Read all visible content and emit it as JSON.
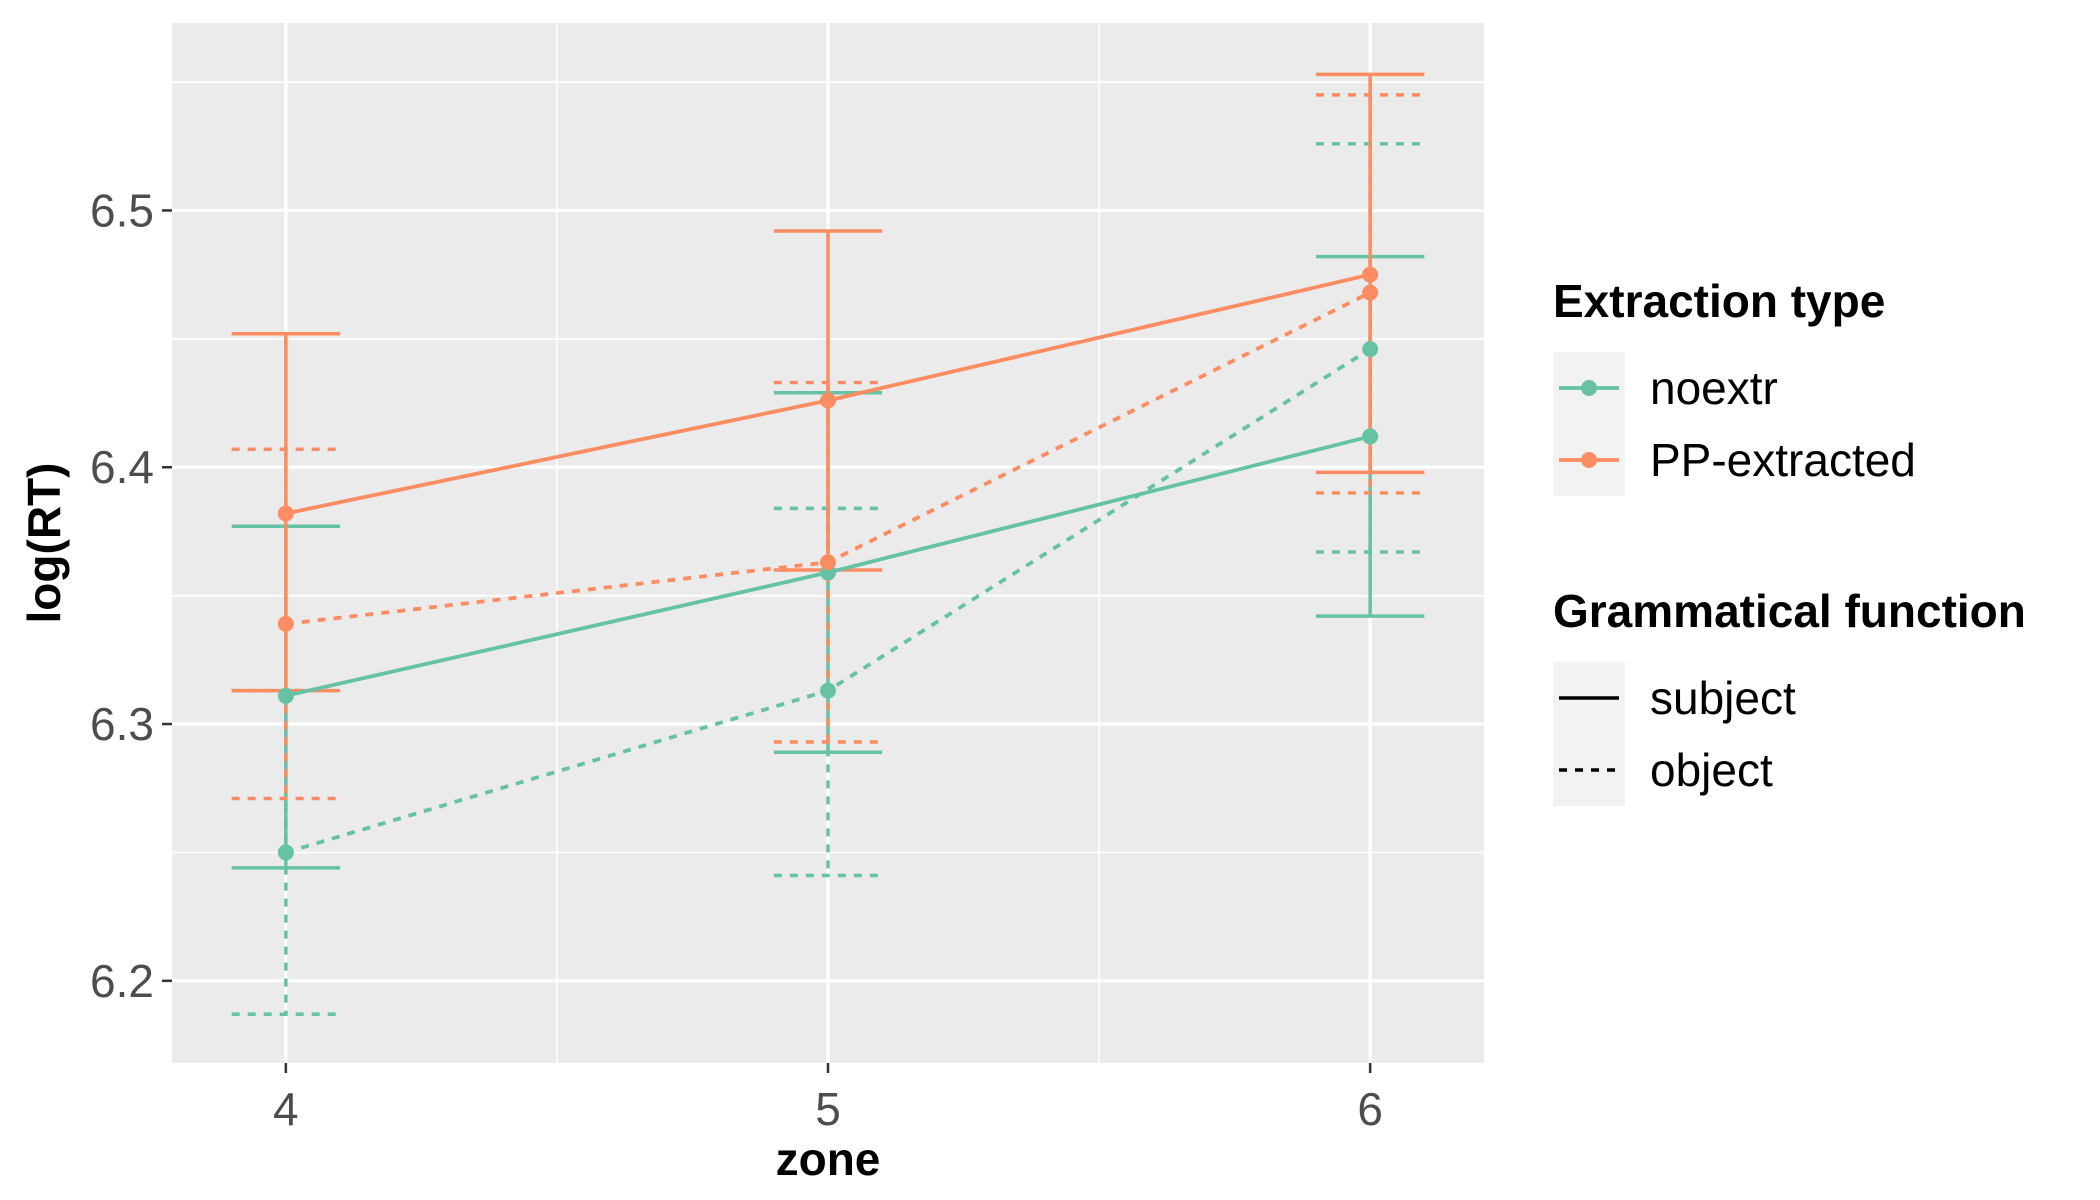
{
  "chart_data": {
    "type": "line",
    "xlabel": "zone",
    "ylabel": "log(RT)",
    "x": [
      4,
      5,
      6
    ],
    "xlim": [
      3.79,
      6.21
    ],
    "ylim": [
      6.168,
      6.573
    ],
    "yticks": [
      6.2,
      6.3,
      6.4,
      6.5
    ],
    "grid": true,
    "legend_position": "right",
    "colors": {
      "noextr": "#66c2a5",
      "PP-extracted": "#fc8d62"
    },
    "series": [
      {
        "extraction": "noextr",
        "function": "subject",
        "values": [
          6.311,
          6.359,
          6.412
        ],
        "lower": [
          6.244,
          6.289,
          6.342
        ],
        "upper": [
          6.377,
          6.429,
          6.482
        ]
      },
      {
        "extraction": "noextr",
        "function": "object",
        "values": [
          6.25,
          6.313,
          6.446
        ],
        "lower": [
          6.187,
          6.241,
          6.367
        ],
        "upper": [
          6.313,
          6.384,
          6.526
        ]
      },
      {
        "extraction": "PP-extracted",
        "function": "subject",
        "values": [
          6.382,
          6.426,
          6.475
        ],
        "lower": [
          6.313,
          6.36,
          6.398
        ],
        "upper": [
          6.452,
          6.492,
          6.553
        ]
      },
      {
        "extraction": "PP-extracted",
        "function": "object",
        "values": [
          6.339,
          6.363,
          6.468
        ],
        "lower": [
          6.271,
          6.293,
          6.39
        ],
        "upper": [
          6.407,
          6.433,
          6.545
        ]
      }
    ],
    "legend": {
      "color_title": "Extraction type",
      "color_items": [
        "noextr",
        "PP-extracted"
      ],
      "linetype_title": "Grammatical function",
      "linetype_items": [
        "subject",
        "object"
      ]
    }
  }
}
